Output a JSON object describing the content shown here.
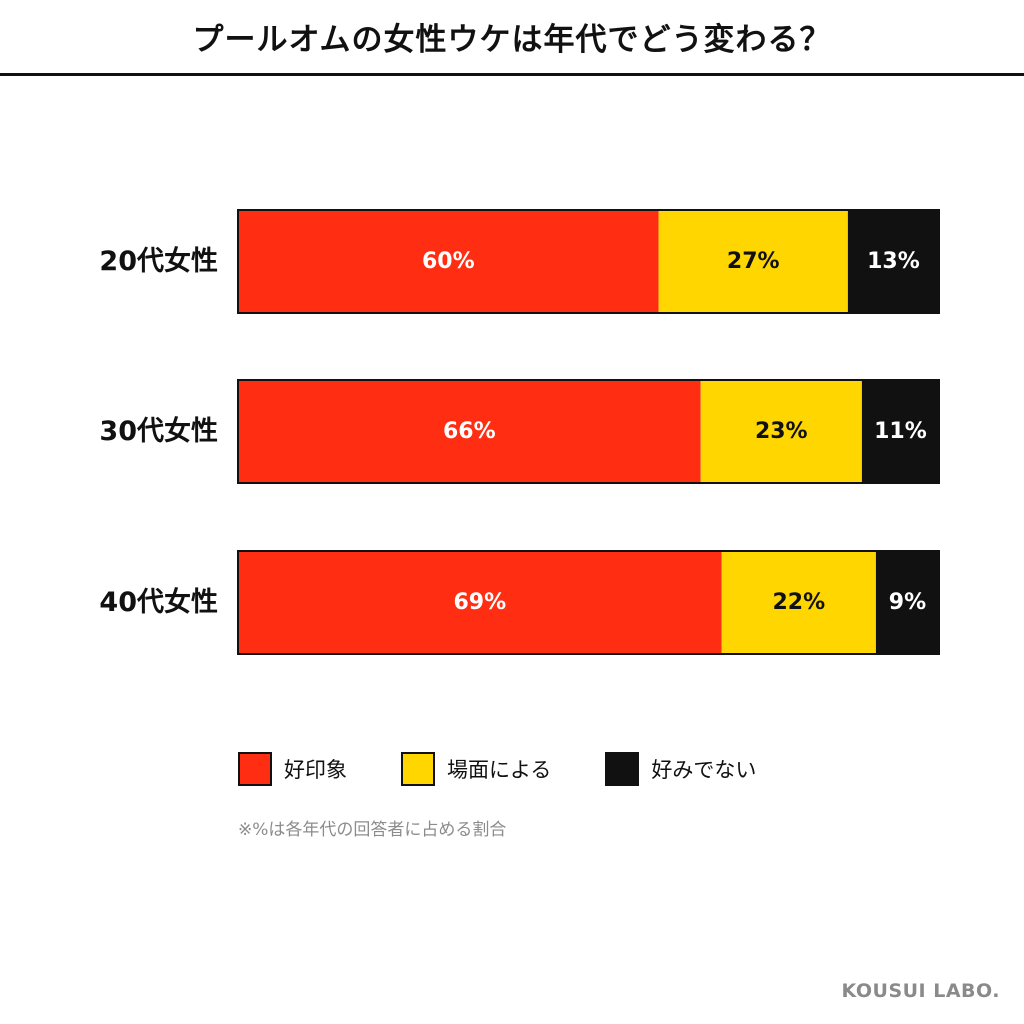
{
  "title": "プールオムの女性ウケは年代でどう変わる？",
  "chart_data": {
    "type": "bar",
    "orientation": "horizontal",
    "stacked": true,
    "percent_stacked": true,
    "categories": [
      "20代女性",
      "30代女性",
      "40代女性"
    ],
    "series": [
      {
        "name": "好印象",
        "color": "#FF2D12",
        "label_color": "#ffffff",
        "values": [
          60,
          66,
          69
        ],
        "labels": [
          "60%",
          "66%",
          "69%"
        ]
      },
      {
        "name": "場面による",
        "color": "#FFD600",
        "label_color": "#111111",
        "values": [
          27,
          23,
          22
        ],
        "labels": [
          "27%",
          "23%",
          "22%"
        ]
      },
      {
        "name": "好みでない",
        "color": "#111111",
        "label_color": "#ffffff",
        "values": [
          13,
          11,
          9
        ],
        "labels": [
          "13%",
          "11%",
          "9%"
        ]
      }
    ],
    "xlim": [
      0,
      100
    ],
    "grid": false,
    "legend_position": "bottom-left"
  },
  "legend": [
    {
      "label": "好印象",
      "color": "#FF2D12"
    },
    {
      "label": "場面による",
      "color": "#FFD600"
    },
    {
      "label": "好みでない",
      "color": "#111111"
    }
  ],
  "footnote": "※%は各年代の回答者に占める割合",
  "brand": "KOUSUI LABO."
}
